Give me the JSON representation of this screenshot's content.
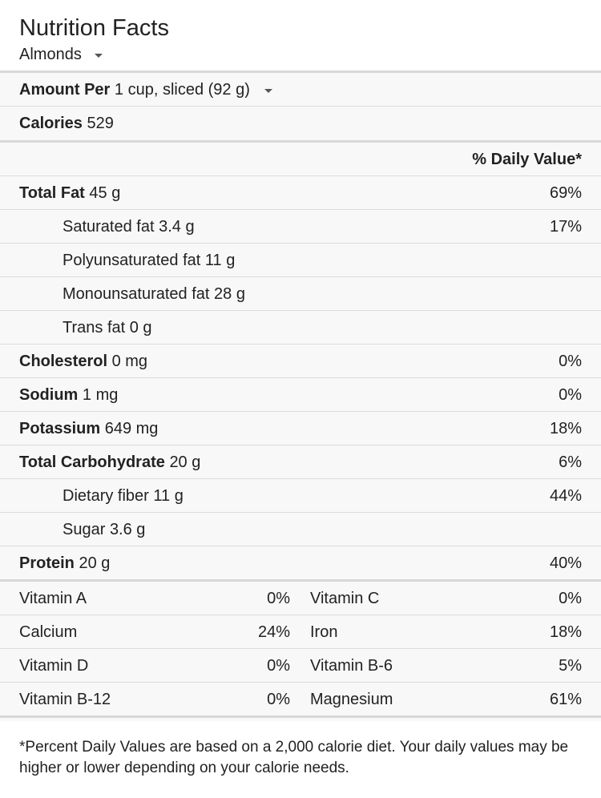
{
  "header": {
    "title": "Nutrition Facts",
    "food": "Almonds"
  },
  "amount": {
    "label": "Amount Per",
    "serving": "1 cup, sliced (92 g)"
  },
  "calories": {
    "label": "Calories",
    "value": "529"
  },
  "dv_header": "% Daily Value*",
  "nutrients": [
    {
      "name": "Total Fat",
      "amount": "45 g",
      "dv": "69%"
    },
    {
      "name": "Saturated fat",
      "amount": "3.4 g",
      "dv": "17%"
    },
    {
      "name": "Polyunsaturated fat",
      "amount": "11 g",
      "dv": ""
    },
    {
      "name": "Monounsaturated fat",
      "amount": "28 g",
      "dv": ""
    },
    {
      "name": "Trans fat",
      "amount": "0 g",
      "dv": ""
    },
    {
      "name": "Cholesterol",
      "amount": "0 mg",
      "dv": "0%"
    },
    {
      "name": "Sodium",
      "amount": "1 mg",
      "dv": "0%"
    },
    {
      "name": "Potassium",
      "amount": "649 mg",
      "dv": "18%"
    },
    {
      "name": "Total Carbohydrate",
      "amount": "20 g",
      "dv": "6%"
    },
    {
      "name": "Dietary fiber",
      "amount": "11 g",
      "dv": "44%"
    },
    {
      "name": "Sugar",
      "amount": "3.6 g",
      "dv": ""
    },
    {
      "name": "Protein",
      "amount": "20 g",
      "dv": "40%"
    }
  ],
  "vitamins": [
    {
      "left_name": "Vitamin A",
      "left_dv": "0%",
      "right_name": "Vitamin C",
      "right_dv": "0%"
    },
    {
      "left_name": "Calcium",
      "left_dv": "24%",
      "right_name": "Iron",
      "right_dv": "18%"
    },
    {
      "left_name": "Vitamin D",
      "left_dv": "0%",
      "right_name": "Vitamin B-6",
      "right_dv": "5%"
    },
    {
      "left_name": "Vitamin B-12",
      "left_dv": "0%",
      "right_name": "Magnesium",
      "right_dv": "61%"
    }
  ],
  "footnote": "*Percent Daily Values are based on a 2,000 calorie diet. Your daily values may be higher or lower depending on your calorie needs."
}
